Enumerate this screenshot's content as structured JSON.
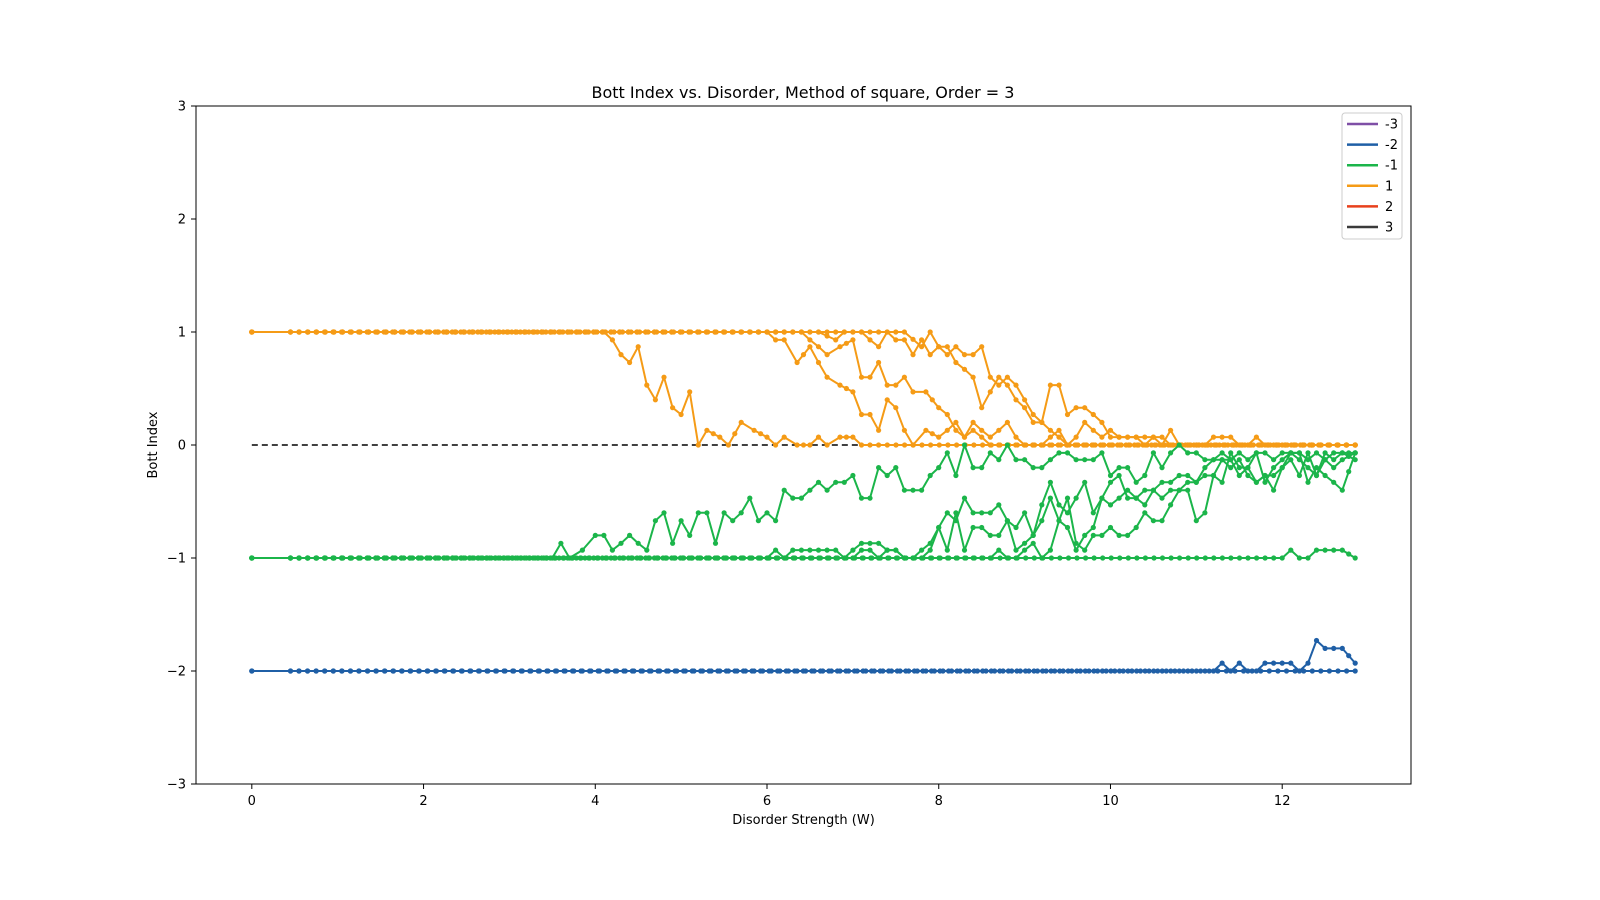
{
  "chart_data": {
    "type": "line",
    "title": "Bott Index vs. Disorder, Method of square, Order = 3",
    "xlabel": "Disorder Strength (W)",
    "ylabel": "Bott Index",
    "xlim": [
      -0.65,
      13.5
    ],
    "ylim": [
      -3,
      3
    ],
    "xticks": [
      0,
      2,
      4,
      6,
      8,
      10,
      12
    ],
    "yticks": [
      -3,
      -2,
      -1,
      0,
      1,
      2,
      3
    ],
    "xtick_labels": [
      "0",
      "2",
      "4",
      "6",
      "8",
      "10",
      "12"
    ],
    "ytick_labels": [
      "−3",
      "−2",
      "−1",
      "0",
      "1",
      "2",
      "3"
    ],
    "grid": false,
    "legend_position": "top-right",
    "legend": [
      {
        "label": "-3",
        "color": "#7f4fa6"
      },
      {
        "label": "-2",
        "color": "#1f5fa6"
      },
      {
        "label": "-1",
        "color": "#1bb54a"
      },
      {
        "label": "1",
        "color": "#f59b16"
      },
      {
        "label": "2",
        "color": "#e8401c"
      },
      {
        "label": "3",
        "color": "#3a3a3a"
      }
    ],
    "reference_line": {
      "y": 0,
      "x_range": [
        0,
        7.3
      ],
      "style": "dashed",
      "color": "#000000"
    },
    "series": [
      {
        "group": "1",
        "color": "#f59b16",
        "x": [
          0,
          0.45,
          4.0,
          4.1,
          4.2,
          4.3,
          4.4,
          4.5,
          4.6,
          4.7,
          4.8,
          4.9,
          5.0,
          5.1,
          5.2,
          5.3,
          5.45,
          5.55,
          5.7,
          5.85,
          6.0,
          6.1,
          6.2,
          6.35,
          6.5,
          6.6,
          6.7,
          6.85,
          7.0,
          7.1,
          7.3,
          12.85
        ],
        "y": [
          1,
          1,
          1,
          1,
          0.93,
          0.8,
          0.73,
          0.87,
          0.53,
          0.4,
          0.6,
          0.33,
          0.27,
          0.47,
          0,
          0.13,
          0.07,
          0,
          0.2,
          0.13,
          0.07,
          0,
          0.07,
          0,
          0,
          0.07,
          0,
          0.07,
          0.07,
          0,
          0,
          0
        ]
      },
      {
        "group": "1",
        "color": "#f59b16",
        "x": [
          0,
          0.45,
          6.0,
          6.1,
          6.2,
          6.35,
          6.5,
          6.6,
          6.7,
          6.85,
          7.0,
          7.1,
          7.2,
          7.3,
          7.4,
          7.5,
          7.6,
          7.7,
          7.85,
          8.0,
          8.1,
          8.2,
          8.3,
          8.4,
          8.5,
          8.6,
          12.85
        ],
        "y": [
          1,
          1,
          1,
          0.93,
          0.93,
          0.73,
          0.87,
          0.73,
          0.6,
          0.53,
          0.47,
          0.27,
          0.27,
          0.13,
          0.4,
          0.33,
          0.13,
          0,
          0.13,
          0.07,
          0.13,
          0.2,
          0.07,
          0.13,
          0.07,
          0,
          0
        ]
      },
      {
        "group": "1",
        "color": "#f59b16",
        "x": [
          0,
          0.45,
          6.4,
          6.5,
          6.6,
          6.7,
          6.85,
          7.0,
          7.1,
          7.2,
          7.3,
          7.4,
          7.5,
          7.6,
          7.7,
          7.85,
          8.0,
          8.1,
          8.2,
          8.3,
          8.4,
          8.5,
          8.6,
          8.7,
          8.8,
          8.9,
          9.0,
          9.1,
          9.2,
          9.3,
          9.4,
          9.5,
          12.85
        ],
        "y": [
          1,
          1,
          1,
          0.93,
          0.87,
          0.8,
          0.87,
          0.93,
          0.6,
          0.6,
          0.73,
          0.53,
          0.53,
          0.6,
          0.47,
          0.47,
          0.33,
          0.27,
          0.13,
          0.07,
          0.2,
          0.13,
          0.07,
          0.13,
          0.2,
          0.07,
          0,
          0,
          0,
          0.07,
          0.13,
          0,
          0
        ]
      },
      {
        "group": "1",
        "color": "#f59b16",
        "x": [
          0,
          0.45,
          6.0,
          6.2,
          6.4,
          6.6,
          6.8,
          6.9,
          7.0,
          7.1,
          7.2,
          7.3,
          7.4,
          7.5,
          7.6,
          7.7,
          7.8,
          7.9,
          8.0,
          8.1,
          8.2,
          8.3,
          8.4,
          8.5,
          8.6,
          8.7,
          8.8,
          8.9,
          9.0,
          9.1,
          9.2,
          9.3,
          9.4,
          9.5,
          9.6,
          9.7,
          9.8,
          9.9,
          10.0,
          10.1,
          10.2,
          10.3,
          10.4,
          10.5,
          10.6,
          10.7,
          10.8,
          12.85
        ],
        "y": [
          1,
          1,
          1,
          1,
          1,
          1,
          0.93,
          1,
          1,
          1,
          0.93,
          0.87,
          1,
          0.93,
          0.93,
          0.8,
          0.93,
          0.8,
          0.87,
          0.87,
          0.73,
          0.67,
          0.6,
          0.33,
          0.47,
          0.6,
          0.53,
          0.4,
          0.33,
          0.2,
          0.2,
          0.13,
          0.07,
          0,
          0.07,
          0.2,
          0.13,
          0.07,
          0.13,
          0.07,
          0.07,
          0.07,
          0,
          0.07,
          0,
          0.13,
          0,
          0
        ]
      },
      {
        "group": "1",
        "color": "#f59b16",
        "x": [
          0,
          0.45,
          6.0,
          6.2,
          6.4,
          6.6,
          6.8,
          7.0,
          7.2,
          7.4,
          7.6,
          7.8,
          7.9,
          8.0,
          8.1,
          8.2,
          8.3,
          8.4,
          8.5,
          8.6,
          8.7,
          8.8,
          8.9,
          9.0,
          9.1,
          9.2,
          9.3,
          9.4,
          9.5,
          9.6,
          9.7,
          9.8,
          9.9,
          10.0,
          10.1,
          10.2,
          10.3,
          10.4,
          10.5,
          10.6,
          10.7,
          10.8,
          10.9,
          11.0,
          11.1,
          11.2,
          11.3,
          11.4,
          11.5,
          11.6,
          11.7,
          11.8,
          11.9,
          12.0,
          12.85
        ],
        "y": [
          1,
          1,
          1,
          1,
          1,
          1,
          1,
          1,
          1,
          1,
          1,
          0.87,
          1,
          0.87,
          0.8,
          0.87,
          0.8,
          0.8,
          0.87,
          0.6,
          0.53,
          0.6,
          0.53,
          0.4,
          0.27,
          0.2,
          0.53,
          0.53,
          0.27,
          0.33,
          0.33,
          0.27,
          0.2,
          0.07,
          0.07,
          0.07,
          0.07,
          0.07,
          0.07,
          0.07,
          0,
          0,
          0,
          0,
          0,
          0.07,
          0.07,
          0.07,
          0,
          0,
          0.07,
          0,
          0,
          0,
          0
        ]
      },
      {
        "group": "-1",
        "color": "#1bb54a",
        "x": [
          0,
          0.45,
          3.4,
          3.5,
          3.6,
          3.7,
          3.85,
          4.0,
          4.1,
          4.2,
          4.3,
          4.4,
          4.5,
          4.6,
          4.7,
          4.8,
          4.9,
          5.0,
          5.1,
          5.2,
          5.3,
          5.4,
          5.5,
          5.6,
          5.7,
          5.8,
          5.9,
          6.0,
          6.1,
          6.2,
          6.3,
          6.4,
          6.5,
          6.6,
          6.7,
          6.8,
          6.9,
          7.0,
          7.1,
          7.2,
          7.3,
          7.4,
          7.5,
          7.6,
          7.7,
          7.8,
          7.9,
          8.0,
          8.1,
          8.2,
          8.3,
          8.4,
          8.5,
          8.6,
          8.7,
          8.8,
          8.9,
          9.0,
          9.1,
          9.2,
          9.3,
          9.4,
          9.5,
          9.6,
          9.7,
          9.8,
          9.9,
          10.0,
          10.1,
          10.2,
          10.3,
          10.4,
          10.5,
          10.6,
          10.7,
          10.8,
          10.9,
          11.0,
          11.1,
          11.2,
          11.3,
          11.4,
          11.5,
          11.6,
          11.7,
          11.8,
          11.9,
          12.0,
          12.1,
          12.2,
          12.3,
          12.4,
          12.5,
          12.6,
          12.7,
          12.85
        ],
        "y": [
          -1,
          -1,
          -1,
          -1,
          -0.87,
          -1,
          -0.93,
          -0.8,
          -0.8,
          -0.93,
          -0.87,
          -0.8,
          -0.87,
          -0.93,
          -0.67,
          -0.6,
          -0.87,
          -0.67,
          -0.8,
          -0.6,
          -0.6,
          -0.87,
          -0.6,
          -0.67,
          -0.6,
          -0.47,
          -0.67,
          -0.6,
          -0.67,
          -0.4,
          -0.47,
          -0.47,
          -0.4,
          -0.33,
          -0.4,
          -0.33,
          -0.33,
          -0.27,
          -0.47,
          -0.47,
          -0.2,
          -0.27,
          -0.2,
          -0.4,
          -0.4,
          -0.4,
          -0.27,
          -0.2,
          -0.07,
          -0.27,
          0,
          -0.2,
          -0.2,
          -0.07,
          -0.13,
          0,
          -0.13,
          -0.13,
          -0.2,
          -0.2,
          -0.13,
          -0.07,
          -0.07,
          -0.13,
          -0.13,
          -0.13,
          -0.07,
          -0.27,
          -0.2,
          -0.2,
          -0.33,
          -0.27,
          -0.07,
          -0.2,
          -0.07,
          0,
          -0.07,
          -0.07,
          -0.13,
          -0.13,
          -0.07,
          -0.13,
          -0.07,
          -0.13,
          -0.07,
          -0.07,
          -0.13,
          -0.07,
          -0.07,
          -0.07,
          -0.13,
          -0.07,
          -0.13,
          -0.07,
          -0.07,
          -0.07
        ]
      },
      {
        "group": "-1",
        "color": "#1bb54a",
        "x": [
          0,
          0.45,
          6.0,
          6.1,
          6.2,
          6.3,
          6.4,
          6.5,
          6.6,
          6.7,
          6.8,
          6.9,
          7.0,
          7.1,
          7.2,
          7.3,
          7.4,
          7.5,
          7.6,
          7.7,
          7.8,
          7.9,
          8.0,
          8.1,
          8.2,
          8.3,
          8.4,
          8.5,
          8.6,
          8.7,
          8.8,
          8.9,
          9.0,
          9.1,
          9.2,
          9.3,
          9.4,
          9.5,
          9.6,
          9.7,
          9.8,
          9.9,
          10.0,
          10.1,
          10.2,
          10.3,
          10.4,
          10.5,
          10.6,
          10.7,
          10.8,
          10.9,
          11.0,
          11.1,
          11.2,
          11.3,
          11.4,
          11.5,
          11.6,
          11.7,
          11.8,
          11.9,
          12.0,
          12.1,
          12.2,
          12.3,
          12.4,
          12.5,
          12.6,
          12.7,
          12.85
        ],
        "y": [
          -1,
          -1,
          -1,
          -0.93,
          -1,
          -0.93,
          -0.93,
          -0.93,
          -0.93,
          -0.93,
          -0.93,
          -1,
          -0.93,
          -0.87,
          -0.87,
          -0.87,
          -0.93,
          -0.93,
          -1,
          -1,
          -1,
          -0.93,
          -0.73,
          -0.6,
          -0.67,
          -0.47,
          -0.6,
          -0.6,
          -0.6,
          -0.53,
          -0.67,
          -0.73,
          -0.6,
          -0.8,
          -0.53,
          -0.33,
          -0.53,
          -0.6,
          -0.47,
          -0.33,
          -0.6,
          -0.47,
          -0.33,
          -0.27,
          -0.47,
          -0.47,
          -0.4,
          -0.4,
          -0.33,
          -0.33,
          -0.27,
          -0.27,
          -0.33,
          -0.27,
          -0.27,
          -0.13,
          -0.2,
          -0.13,
          -0.27,
          -0.33,
          -0.27,
          -0.27,
          -0.2,
          -0.07,
          -0.13,
          -0.2,
          -0.27,
          -0.13,
          -0.2,
          -0.13,
          -0.07
        ]
      },
      {
        "group": "-1",
        "color": "#1bb54a",
        "x": [
          0,
          0.45,
          7.0,
          7.1,
          7.2,
          7.3,
          7.4,
          7.5,
          7.6,
          7.7,
          7.8,
          7.9,
          8.0,
          8.1,
          8.2,
          8.3,
          8.4,
          8.5,
          8.6,
          8.7,
          8.8,
          8.9,
          9.0,
          9.1,
          9.2,
          9.3,
          9.4,
          9.5,
          9.6,
          9.7,
          9.8,
          9.9,
          10.0,
          10.1,
          10.2,
          10.3,
          10.4,
          10.5,
          10.6,
          10.7,
          10.8,
          10.9,
          11.0,
          11.1,
          11.2,
          11.3,
          11.4,
          11.5,
          11.6,
          11.7,
          11.8,
          11.9,
          12.0,
          12.1,
          12.2,
          12.3,
          12.4,
          12.5,
          12.6,
          12.7,
          12.85
        ],
        "y": [
          -1,
          -1,
          -1,
          -0.93,
          -0.93,
          -1,
          -0.93,
          -0.93,
          -1,
          -1,
          -0.93,
          -0.87,
          -0.73,
          -0.93,
          -0.6,
          -0.93,
          -0.73,
          -0.73,
          -0.8,
          -0.8,
          -0.67,
          -0.93,
          -0.87,
          -0.8,
          -0.67,
          -0.47,
          -0.67,
          -0.73,
          -0.93,
          -0.8,
          -0.73,
          -0.47,
          -0.53,
          -0.47,
          -0.4,
          -0.47,
          -0.53,
          -0.4,
          -0.47,
          -0.4,
          -0.4,
          -0.33,
          -0.33,
          -0.2,
          -0.13,
          -0.13,
          -0.13,
          -0.27,
          -0.2,
          -0.33,
          -0.27,
          -0.4,
          -0.2,
          -0.13,
          -0.27,
          -0.07,
          -0.27,
          -0.07,
          -0.13,
          -0.07,
          -0.13
        ]
      },
      {
        "group": "-1",
        "color": "#1bb54a",
        "x": [
          0,
          0.45,
          8.6,
          8.7,
          8.8,
          8.9,
          9.0,
          9.1,
          9.2,
          9.3,
          9.4,
          9.5,
          9.6,
          9.7,
          9.8,
          9.9,
          10.0,
          10.1,
          10.2,
          10.3,
          10.4,
          10.5,
          10.6,
          10.7,
          10.8,
          10.9,
          11.0,
          11.1,
          11.2,
          11.3,
          11.4,
          11.5,
          11.6,
          11.7,
          11.8,
          11.9,
          12.0,
          12.1,
          12.2,
          12.3,
          12.4,
          12.5,
          12.6,
          12.7,
          12.85
        ],
        "y": [
          -1,
          -1,
          -1,
          -0.93,
          -1,
          -1,
          -0.93,
          -0.87,
          -1,
          -0.93,
          -0.67,
          -0.47,
          -0.87,
          -0.93,
          -0.8,
          -0.8,
          -0.73,
          -0.8,
          -0.8,
          -0.73,
          -0.6,
          -0.67,
          -0.67,
          -0.53,
          -0.4,
          -0.4,
          -0.67,
          -0.6,
          -0.27,
          -0.33,
          -0.07,
          -0.2,
          -0.2,
          -0.07,
          -0.33,
          -0.2,
          -0.13,
          -0.07,
          -0.07,
          -0.33,
          -0.2,
          -0.27,
          -0.33,
          -0.4,
          -0.07
        ]
      },
      {
        "group": "-1",
        "color": "#1bb54a",
        "x": [
          0,
          0.45,
          12.0,
          12.1,
          12.2,
          12.3,
          12.4,
          12.5,
          12.6,
          12.7,
          12.85
        ],
        "y": [
          -1,
          -1,
          -1,
          -0.93,
          -1,
          -1,
          -0.93,
          -0.93,
          -0.93,
          -0.93,
          -1
        ]
      },
      {
        "group": "-2",
        "color": "#1f5fa6",
        "x": [
          0,
          0.45,
          11.2,
          11.3,
          11.4,
          11.5,
          11.6,
          11.7,
          11.8,
          11.9,
          12.0,
          12.1,
          12.2,
          12.3,
          12.4,
          12.5,
          12.6,
          12.7,
          12.85
        ],
        "y": [
          -2,
          -2,
          -2,
          -1.93,
          -2,
          -1.93,
          -2,
          -2,
          -1.93,
          -1.93,
          -1.93,
          -1.93,
          -2,
          -1.93,
          -1.73,
          -1.8,
          -1.8,
          -1.8,
          -1.93
        ]
      },
      {
        "group": "-2",
        "color": "#1f5fa6",
        "x": [
          0,
          0.45,
          12.85
        ],
        "y": [
          -2,
          -2,
          -2
        ]
      }
    ]
  }
}
